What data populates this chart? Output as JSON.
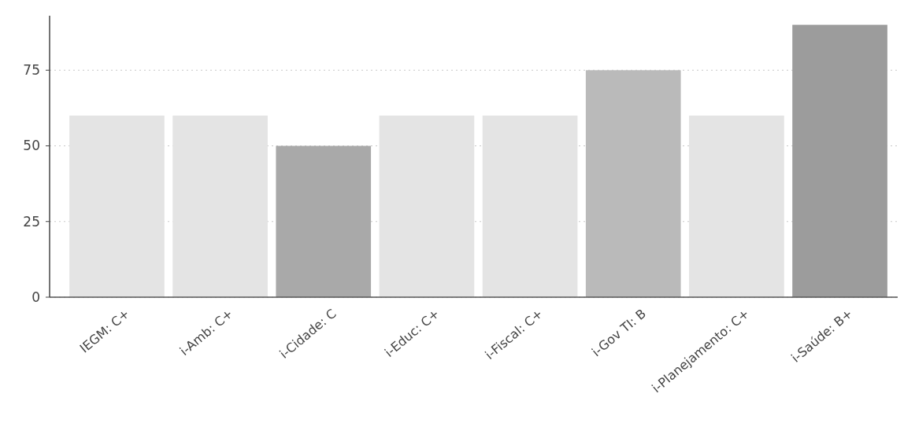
{
  "chart_data": {
    "type": "bar",
    "categories": [
      "IEGM: C+",
      "i-Amb: C+",
      "i-Cidade: C",
      "i-Educ: C+",
      "i-Fiscal: C+",
      "i-Gov TI: B",
      "i-Planejamento: C+",
      "i-Saúde: B+"
    ],
    "values": [
      60,
      60,
      50,
      60,
      60,
      75,
      60,
      90
    ],
    "colors": [
      "#e4e4e4",
      "#e4e4e4",
      "#a9a9a9",
      "#e4e4e4",
      "#e4e4e4",
      "#bababa",
      "#e4e4e4",
      "#9c9c9c"
    ],
    "ylim": [
      0,
      93
    ],
    "yticks": [
      0,
      25,
      50,
      75
    ],
    "grid": "y"
  }
}
